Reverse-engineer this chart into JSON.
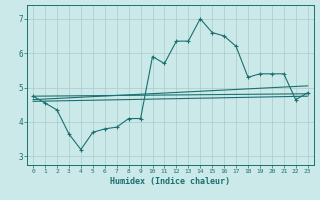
{
  "title": "",
  "xlabel": "Humidex (Indice chaleur)",
  "xlim": [
    -0.5,
    23.5
  ],
  "ylim": [
    2.75,
    7.4
  ],
  "yticks": [
    3,
    4,
    5,
    6,
    7
  ],
  "xticks": [
    0,
    1,
    2,
    3,
    4,
    5,
    6,
    7,
    8,
    9,
    10,
    11,
    12,
    13,
    14,
    15,
    16,
    17,
    18,
    19,
    20,
    21,
    22,
    23
  ],
  "bg_color": "#cce9e9",
  "grid_color": "#aacccc",
  "line_color": "#1a7070",
  "main_x": [
    0,
    1,
    2,
    3,
    4,
    5,
    6,
    7,
    8,
    9,
    10,
    11,
    12,
    13,
    14,
    15,
    16,
    17,
    18,
    19,
    20,
    21,
    22,
    23
  ],
  "main_y": [
    4.75,
    4.55,
    4.35,
    3.65,
    3.2,
    3.7,
    3.8,
    3.85,
    4.1,
    4.1,
    5.9,
    5.7,
    6.35,
    6.35,
    7.0,
    6.6,
    6.5,
    6.2,
    5.3,
    5.4,
    5.4,
    5.4,
    4.65,
    4.85
  ],
  "line2_x": [
    0,
    23
  ],
  "line2_y": [
    4.6,
    4.75
  ],
  "line3_x": [
    0,
    23
  ],
  "line3_y": [
    4.65,
    5.05
  ],
  "line4_x": [
    0,
    23
  ],
  "line4_y": [
    4.75,
    4.82
  ]
}
